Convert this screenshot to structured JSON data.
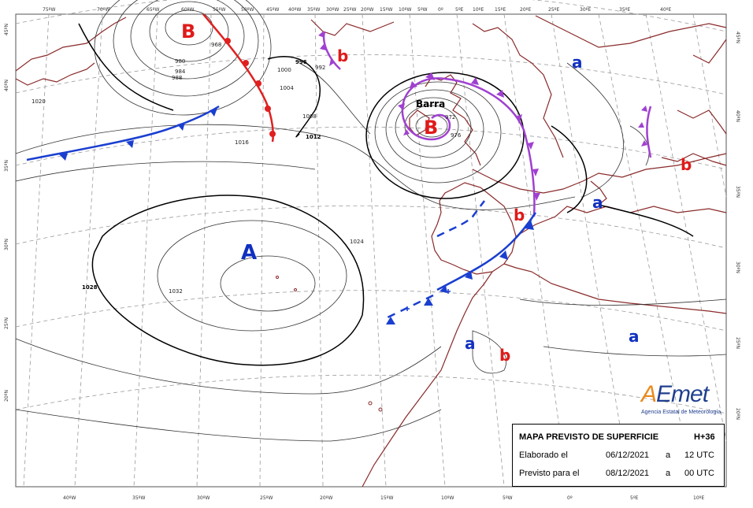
{
  "map": {
    "lon_labels_top": [
      "75ºW",
      "70ºW",
      "65ºW",
      "60ºW",
      "55ºW",
      "50ºW",
      "45ºW",
      "40ºW",
      "35ºW",
      "30ºW",
      "25ºW",
      "20ºW",
      "15ºW",
      "10ºW",
      "5ºW",
      "0º",
      "5ºE",
      "10ºE",
      "15ºE",
      "20ºE",
      "25ºE",
      "30ºE",
      "35ºE",
      "40ºE"
    ],
    "lon_labels_bottom": [
      "40ºW",
      "35ºW",
      "30ºW",
      "25ºW",
      "20ºW",
      "15ºW",
      "10ºW",
      "5ºW",
      "0º",
      "5ºE",
      "10ºE"
    ],
    "lat_labels_left": [
      "45ºN",
      "40ºN",
      "35ºN",
      "30ºN",
      "25ºN",
      "20ºN"
    ],
    "lat_labels_right": [
      "45ºN",
      "40ºN",
      "35ºN",
      "30ºN",
      "25ºN",
      "20ºN"
    ],
    "isobar_labels": [
      "1020",
      "1016",
      "1012",
      "1008",
      "1004",
      "1000",
      "996",
      "992",
      "988",
      "984",
      "980",
      "976",
      "972",
      "968",
      "1024",
      "1028",
      "1032"
    ],
    "pressure_centres": [
      {
        "letter": "B",
        "kind": "low"
      },
      {
        "letter": "B",
        "kind": "low"
      },
      {
        "letter": "A",
        "kind": "high"
      },
      {
        "letter": "a",
        "kind": "high"
      },
      {
        "letter": "a",
        "kind": "high"
      },
      {
        "letter": "a",
        "kind": "high"
      },
      {
        "letter": "a",
        "kind": "high"
      },
      {
        "letter": "b",
        "kind": "low"
      },
      {
        "letter": "b",
        "kind": "low"
      },
      {
        "letter": "b",
        "kind": "low"
      },
      {
        "letter": "b",
        "kind": "low"
      }
    ],
    "storm_name": "Barra",
    "colors": {
      "low": "#e01a1a",
      "high": "#1030c0",
      "cold_front": "#1a3fd0",
      "warm_front": "#e02020",
      "occluded_front": "#a040d0",
      "coast": "#8a2a2a",
      "isobar": "#333333"
    }
  },
  "info": {
    "title": "MAPA PREVISTO DE SUPERFICIE",
    "lead": "H+36",
    "made_label": "Elaborado el",
    "made_date": "06/12/2021",
    "made_sep": "a",
    "made_time": "12 UTC",
    "valid_label": "Previsto para el",
    "valid_date": "08/12/2021",
    "valid_sep": "a",
    "valid_time": "00 UTC"
  },
  "logo": {
    "word_a": "A",
    "word_rest": "Emet",
    "subtitle": "Agencia Estatal de Meteorología"
  }
}
